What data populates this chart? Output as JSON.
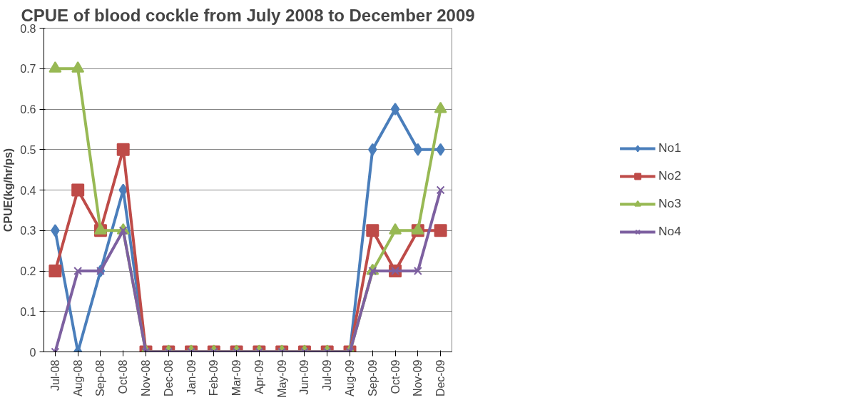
{
  "chart_data": {
    "type": "line",
    "title": "CPUE of blood cockle from July 2008 to December 2009",
    "ylabel": "CPUE(kg/hr/ps)",
    "categories": [
      "Jul-08",
      "Aug-08",
      "Sep-08",
      "Oct-08",
      "Nov-08",
      "Dec-08",
      "Jan-09",
      "Feb-09",
      "Mar-09",
      "Apr-09",
      "May-09",
      "Jun-09",
      "Jul-09",
      "Aug-09",
      "Sep-09",
      "Oct-09",
      "Nov-09",
      "Dec-09"
    ],
    "series": [
      {
        "name": "No1",
        "color": "#4a7ebb",
        "marker": "diamond",
        "values": [
          0.3,
          0,
          0.2,
          0.4,
          0,
          0,
          0,
          0,
          0,
          0,
          0,
          0,
          0,
          0,
          0.5,
          0.6,
          0.5,
          0.5
        ]
      },
      {
        "name": "No2",
        "color": "#be4b48",
        "marker": "square",
        "values": [
          0.2,
          0.4,
          0.3,
          0.5,
          0,
          0,
          0,
          0,
          0,
          0,
          0,
          0,
          0,
          0,
          0.3,
          0.2,
          0.3,
          0.3
        ]
      },
      {
        "name": "No3",
        "color": "#98b954",
        "marker": "triangle",
        "values": [
          0.7,
          0.7,
          0.3,
          0.3,
          0,
          0,
          0,
          0,
          0,
          0,
          0,
          0,
          0,
          0,
          0.2,
          0.3,
          0.3,
          0.6
        ]
      },
      {
        "name": "No4",
        "color": "#7d60a0",
        "marker": "cross",
        "values": [
          0,
          0.2,
          0.2,
          0.3,
          0,
          0,
          0,
          0,
          0,
          0,
          0,
          0,
          0,
          0,
          0.2,
          0.2,
          0.2,
          0.4
        ]
      }
    ],
    "ylim": [
      0,
      0.8
    ],
    "yticks": [
      0,
      0.1,
      0.2,
      0.3,
      0.4,
      0.5,
      0.6,
      0.7,
      0.8
    ],
    "grid": "y",
    "legend": "right",
    "line_style": "solid"
  }
}
